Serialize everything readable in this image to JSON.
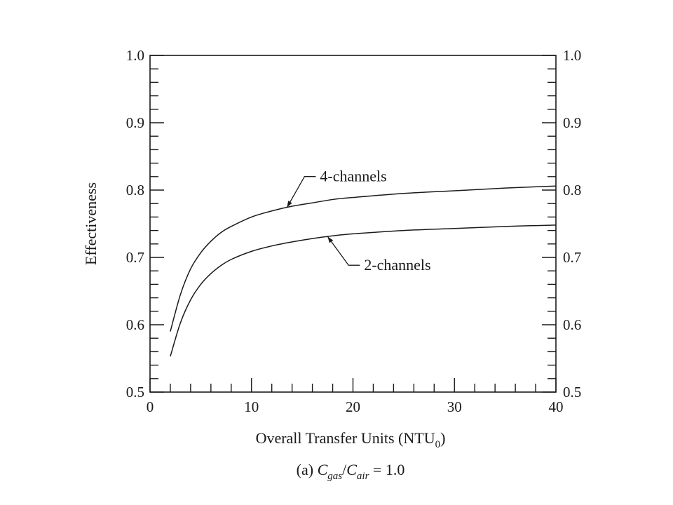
{
  "chart_data": {
    "type": "line",
    "xlabel": "Overall Transfer Units (NTU",
    "xlabel_subscript": "0",
    "xlabel_suffix": ")",
    "ylabel": "Effectiveness",
    "caption": {
      "prefix": "(a) ",
      "c1": "C",
      "c1_sub": "gas",
      "slash": "/",
      "c2": "C",
      "c2_sub": "air",
      "suffix": " = 1.0"
    },
    "xlim": [
      0,
      40
    ],
    "ylim": [
      0.5,
      1.0
    ],
    "x_ticks": [
      0,
      10,
      20,
      30,
      40
    ],
    "x_tick_labels": [
      "0",
      "10",
      "20",
      "30",
      "40"
    ],
    "y_ticks": [
      0.5,
      0.6,
      0.7,
      0.8,
      0.9,
      1.0
    ],
    "y_tick_labels": [
      "0.5",
      "0.6",
      "0.7",
      "0.8",
      "0.9",
      "1.0"
    ],
    "right_axis_mirrors_left": true,
    "grid": false,
    "legend": "none",
    "series": [
      {
        "name": "4-channels",
        "x": [
          2,
          3,
          4,
          5,
          6,
          7,
          8,
          10,
          12,
          14,
          16,
          18,
          20,
          25,
          30,
          35,
          40
        ],
        "y": [
          0.59,
          0.645,
          0.683,
          0.707,
          0.724,
          0.737,
          0.746,
          0.76,
          0.769,
          0.776,
          0.781,
          0.786,
          0.789,
          0.795,
          0.799,
          0.803,
          0.806
        ]
      },
      {
        "name": "2-channels",
        "x": [
          2,
          3,
          4,
          5,
          6,
          7,
          8,
          10,
          12,
          14,
          16,
          18,
          20,
          25,
          30,
          35,
          40
        ],
        "y": [
          0.553,
          0.603,
          0.637,
          0.66,
          0.676,
          0.688,
          0.697,
          0.709,
          0.717,
          0.723,
          0.728,
          0.732,
          0.735,
          0.74,
          0.743,
          0.746,
          0.748
        ]
      }
    ],
    "annotations": [
      {
        "text": "4-channels",
        "series": "4-channels",
        "at_x": 13.5
      },
      {
        "text": "2-channels",
        "series": "2-channels",
        "at_x": 17.5
      }
    ]
  }
}
